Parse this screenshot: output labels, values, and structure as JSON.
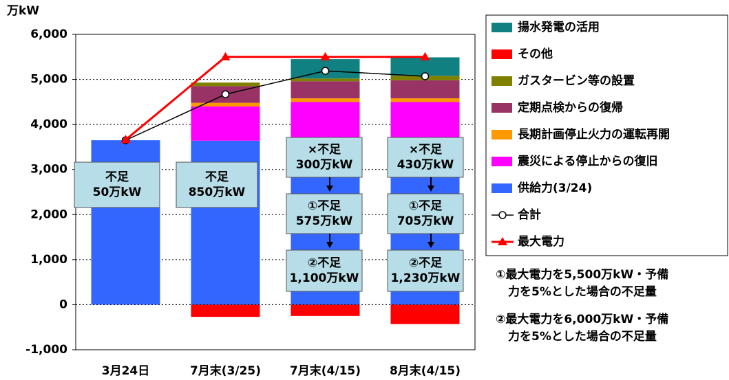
{
  "chart_data": {
    "type": "bar",
    "stacked": true,
    "y_label": "万kW",
    "categories": [
      "3月24日",
      "7月末(3/25)",
      "7月末(4/15)",
      "8月末(4/15)"
    ],
    "ylim": [
      -1000,
      6000
    ],
    "yticks": [
      {
        "value": -1000,
        "label": "-1,000"
      },
      0,
      {
        "value": 1000,
        "label": "1,000"
      },
      {
        "value": 2000,
        "label": "2,000"
      },
      {
        "value": 3000,
        "label": "3,000"
      },
      {
        "value": 4000,
        "label": "4,000"
      },
      {
        "value": 5000,
        "label": "5,000"
      },
      {
        "value": 6000,
        "label": "6,000"
      }
    ],
    "grid": true,
    "series": [
      {
        "name": "供給力(3/24)",
        "color": "#3366ff",
        "values": [
          3650,
          3640,
          3640,
          3640
        ]
      },
      {
        "name": "震災による停止からの復旧",
        "color": "#ff00ff",
        "values": [
          0,
          760,
          860,
          860
        ]
      },
      {
        "name": "長期計画停止火力の運転再開",
        "color": "#ff9900",
        "values": [
          0,
          80,
          80,
          80
        ]
      },
      {
        "name": "定期点検からの復帰",
        "color": "#993366",
        "values": [
          0,
          370,
          380,
          400
        ]
      },
      {
        "name": "ガスタービン等の設置",
        "color": "#808000",
        "values": [
          0,
          80,
          60,
          100
        ]
      },
      {
        "name": "その他",
        "color": "#ff0000",
        "values": [
          0,
          -270,
          -250,
          -430
        ]
      },
      {
        "name": "揚水発電の活用",
        "color": "#108080",
        "values": [
          0,
          0,
          430,
          410
        ]
      }
    ],
    "line_series": [
      {
        "name": "合計",
        "color": "#000000",
        "marker": "circle",
        "values": [
          3650,
          4670,
          5190,
          5070
        ]
      },
      {
        "name": "最大電力",
        "color": "#ff0000",
        "marker": "triangle",
        "values": [
          3660,
          5500,
          5500,
          5500
        ]
      }
    ],
    "annotations": [
      {
        "category": 0,
        "lines": [
          "不足",
          "50万kW"
        ]
      },
      {
        "category": 1,
        "lines": [
          "不足",
          "850万kW"
        ]
      },
      {
        "category": 2,
        "lines": [
          "×不足",
          "300万kW"
        ]
      },
      {
        "category": 2,
        "lines": [
          "①不足",
          "575万kW"
        ]
      },
      {
        "category": 2,
        "lines": [
          "②不足",
          "1,100万kW"
        ]
      },
      {
        "category": 3,
        "lines": [
          "×不足",
          "430万kW"
        ]
      },
      {
        "category": 3,
        "lines": [
          "①不足",
          "705万kW"
        ]
      },
      {
        "category": 3,
        "lines": [
          "②不足",
          "1,230万kW"
        ]
      }
    ],
    "notes": [
      [
        "①最大電力を5,500万kW・予備",
        "力を5%とした場合の不足量"
      ],
      [
        "②最大電力を6,000万kW・予備",
        "力を5%とした場合の不足量"
      ]
    ]
  }
}
